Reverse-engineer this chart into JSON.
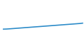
{
  "x": [
    0,
    1,
    2,
    3,
    4,
    5,
    6,
    7,
    8,
    9,
    10,
    11,
    12,
    13,
    14,
    15,
    16,
    17,
    18,
    19,
    20
  ],
  "y": [
    0.5,
    0.55,
    0.65,
    0.75,
    0.85,
    0.95,
    1.05,
    1.15,
    1.25,
    1.35,
    1.45,
    1.55,
    1.65,
    1.75,
    1.85,
    1.95,
    2.05,
    2.15,
    2.25,
    2.35,
    2.5
  ],
  "line_color": "#2a8ac8",
  "background_color": "#ffffff",
  "linewidth": 1.2,
  "ylim": [
    0,
    10
  ],
  "xlim": [
    -0.5,
    20
  ]
}
